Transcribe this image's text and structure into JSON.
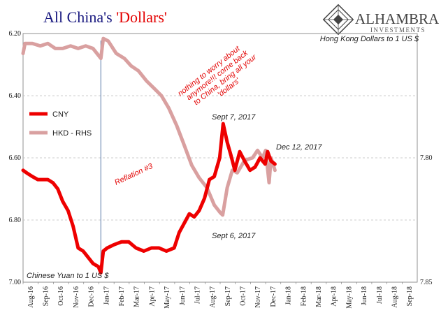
{
  "title_prefix": "All China's ",
  "title_emph": "'Dollars'",
  "logo": {
    "name": "ALHAMBRA",
    "sub": "INVESTMENTS"
  },
  "colors": {
    "cny": "#ee0000",
    "hkd": "#d9a0a0",
    "title_blue": "#1a1a80",
    "title_red": "#e30000"
  },
  "chart_data": {
    "type": "line",
    "left_axis_label": "Chinese Yuan to 1 US $",
    "right_axis_label": "Hong Kong Dollars to 1 US $",
    "y_left": {
      "min": 6.2,
      "max": 7.0,
      "inverted": true,
      "ticks": [
        "6.20",
        "6.40",
        "6.60",
        "6.80",
        "7.00"
      ]
    },
    "y_right": {
      "min": 7.75,
      "max": 7.85,
      "inverted": true,
      "ticks": [
        "7.80",
        "7.85"
      ]
    },
    "x_ticks": [
      "Aug-16",
      "Sep-16",
      "Oct-16",
      "Nov-16",
      "Dec-16",
      "Jan-17",
      "Feb-17",
      "Mar-17",
      "Apr-17",
      "May-17",
      "Jun-17",
      "Jul-17",
      "Aug-17",
      "Sep-17",
      "Oct-17",
      "Nov-17",
      "Dec-17",
      "Jan-18",
      "Feb-18",
      "Mar-18",
      "Apr-18",
      "May-18",
      "Jun-18",
      "Jul-18",
      "Aug-18",
      "Sep-18"
    ],
    "legend": [
      {
        "name": "CNY",
        "color": "#ee0000"
      },
      {
        "name": "HKD - RHS",
        "color": "#d9a0a0"
      }
    ],
    "series": [
      {
        "name": "CNY",
        "axis": "left",
        "points": [
          [
            "2016-08-01",
            6.64
          ],
          [
            "2016-08-10",
            6.65
          ],
          [
            "2016-08-20",
            6.66
          ],
          [
            "2016-08-31",
            6.67
          ],
          [
            "2016-09-10",
            6.67
          ],
          [
            "2016-09-20",
            6.67
          ],
          [
            "2016-09-30",
            6.68
          ],
          [
            "2016-10-10",
            6.7
          ],
          [
            "2016-10-20",
            6.74
          ],
          [
            "2016-10-31",
            6.77
          ],
          [
            "2016-11-10",
            6.82
          ],
          [
            "2016-11-20",
            6.89
          ],
          [
            "2016-11-30",
            6.9
          ],
          [
            "2016-12-10",
            6.92
          ],
          [
            "2016-12-20",
            6.94
          ],
          [
            "2016-12-31",
            6.95
          ],
          [
            "2017-01-05",
            6.97
          ],
          [
            "2017-01-10",
            6.9
          ],
          [
            "2017-01-18",
            6.89
          ],
          [
            "2017-01-31",
            6.88
          ],
          [
            "2017-02-15",
            6.87
          ],
          [
            "2017-02-28",
            6.87
          ],
          [
            "2017-03-15",
            6.89
          ],
          [
            "2017-03-31",
            6.9
          ],
          [
            "2017-04-15",
            6.89
          ],
          [
            "2017-04-30",
            6.89
          ],
          [
            "2017-05-15",
            6.9
          ],
          [
            "2017-05-31",
            6.89
          ],
          [
            "2017-06-10",
            6.84
          ],
          [
            "2017-06-20",
            6.81
          ],
          [
            "2017-06-30",
            6.78
          ],
          [
            "2017-07-10",
            6.79
          ],
          [
            "2017-07-20",
            6.77
          ],
          [
            "2017-07-31",
            6.73
          ],
          [
            "2017-08-10",
            6.67
          ],
          [
            "2017-08-20",
            6.66
          ],
          [
            "2017-08-31",
            6.6
          ],
          [
            "2017-09-07",
            6.49
          ],
          [
            "2017-09-15",
            6.55
          ],
          [
            "2017-09-22",
            6.59
          ],
          [
            "2017-09-30",
            6.64
          ],
          [
            "2017-10-10",
            6.58
          ],
          [
            "2017-10-20",
            6.61
          ],
          [
            "2017-10-31",
            6.64
          ],
          [
            "2017-11-10",
            6.63
          ],
          [
            "2017-11-20",
            6.6
          ],
          [
            "2017-11-30",
            6.62
          ],
          [
            "2017-12-05",
            6.58
          ],
          [
            "2017-12-12",
            6.61
          ],
          [
            "2017-12-20",
            6.62
          ]
        ]
      },
      {
        "name": "HKD - RHS",
        "axis": "right",
        "points": [
          [
            "2016-08-01",
            7.758
          ],
          [
            "2016-08-05",
            7.754
          ],
          [
            "2016-08-20",
            7.754
          ],
          [
            "2016-09-05",
            7.755
          ],
          [
            "2016-09-20",
            7.754
          ],
          [
            "2016-10-05",
            7.756
          ],
          [
            "2016-10-20",
            7.756
          ],
          [
            "2016-11-05",
            7.755
          ],
          [
            "2016-11-20",
            7.756
          ],
          [
            "2016-12-05",
            7.755
          ],
          [
            "2016-12-20",
            7.756
          ],
          [
            "2017-01-05",
            7.76
          ],
          [
            "2017-01-10",
            7.752
          ],
          [
            "2017-01-20",
            7.753
          ],
          [
            "2017-02-05",
            7.758
          ],
          [
            "2017-02-20",
            7.76
          ],
          [
            "2017-03-05",
            7.763
          ],
          [
            "2017-03-20",
            7.765
          ],
          [
            "2017-04-05",
            7.769
          ],
          [
            "2017-04-20",
            7.772
          ],
          [
            "2017-05-05",
            7.775
          ],
          [
            "2017-05-20",
            7.78
          ],
          [
            "2017-06-05",
            7.787
          ],
          [
            "2017-06-20",
            7.795
          ],
          [
            "2017-07-05",
            7.803
          ],
          [
            "2017-07-20",
            7.808
          ],
          [
            "2017-08-05",
            7.812
          ],
          [
            "2017-08-20",
            7.819
          ],
          [
            "2017-09-01",
            7.822
          ],
          [
            "2017-09-06",
            7.823
          ],
          [
            "2017-09-15",
            7.812
          ],
          [
            "2017-09-25",
            7.805
          ],
          [
            "2017-10-05",
            7.806
          ],
          [
            "2017-10-20",
            7.801
          ],
          [
            "2017-11-05",
            7.8
          ],
          [
            "2017-11-15",
            7.797
          ],
          [
            "2017-11-25",
            7.8
          ],
          [
            "2017-12-01",
            7.797
          ],
          [
            "2017-12-08",
            7.81
          ],
          [
            "2017-12-12",
            7.8
          ],
          [
            "2017-12-20",
            7.805
          ]
        ]
      }
    ],
    "event_line": {
      "x": "2017-01-05"
    },
    "annotations": {
      "sept7": "Sept 7, 2017",
      "sept6": "Sept 6, 2017",
      "dec12": "Dec 12, 2017",
      "reflation": "Reflation #3",
      "quote_lines": [
        "nothing to worry about",
        "anymore!!! come back",
        "to China, bring all your",
        "'dollars'"
      ]
    }
  }
}
